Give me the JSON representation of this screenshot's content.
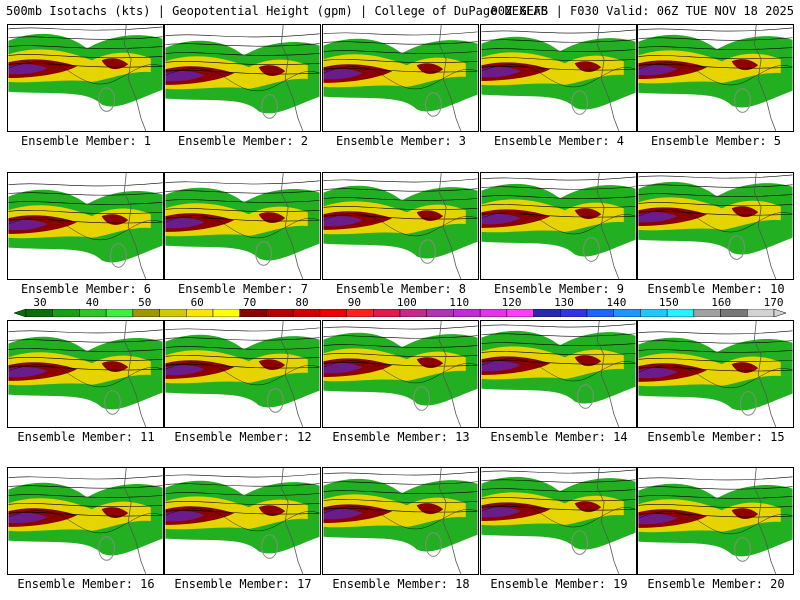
{
  "header": {
    "left": "500mb Isotachs (kts) | Geopotential Height (gpm) | College of DuPage NEXLAB",
    "right": "00Z GEFS | F030 Valid: 06Z TUE NOV 18 2025"
  },
  "members": [
    "Ensemble Member: 1",
    "Ensemble Member: 2",
    "Ensemble Member: 3",
    "Ensemble Member: 4",
    "Ensemble Member: 5",
    "Ensemble Member: 6",
    "Ensemble Member: 7",
    "Ensemble Member: 8",
    "Ensemble Member: 9",
    "Ensemble Member: 10",
    "Ensemble Member: 11",
    "Ensemble Member: 12",
    "Ensemble Member: 13",
    "Ensemble Member: 14",
    "Ensemble Member: 15",
    "Ensemble Member: 16",
    "Ensemble Member: 17",
    "Ensemble Member: 18",
    "Ensemble Member: 19",
    "Ensemble Member: 20"
  ],
  "colorbar": {
    "ticks": [
      "30",
      "40",
      "50",
      "60",
      "70",
      "80",
      "90",
      "100",
      "110",
      "120",
      "130",
      "140",
      "150",
      "160",
      "170"
    ],
    "colors": [
      "#0a6e0a",
      "#14a014",
      "#28c828",
      "#3cf03c",
      "#a09600",
      "#d2c800",
      "#fae600",
      "#ffff00",
      "#8c0000",
      "#b40000",
      "#d20000",
      "#f00000",
      "#ff2020",
      "#e01c4c",
      "#c8288c",
      "#b432b4",
      "#c828dc",
      "#e632f0",
      "#ff3cff",
      "#2828b4",
      "#3232e6",
      "#1e64ff",
      "#1e96ff",
      "#1ec8ff",
      "#28f0ff",
      "#a0a0a0",
      "#787878",
      "#d2d2d2"
    ]
  }
}
